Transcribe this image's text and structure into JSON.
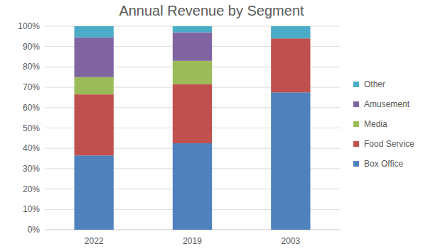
{
  "chart_data": {
    "type": "bar",
    "title": "Annual Revenue by Segment",
    "stacked": true,
    "grid": true,
    "legend": "right",
    "categories": [
      "2022",
      "2019",
      "2003"
    ],
    "series": [
      {
        "name": "Box Office",
        "color": "#4f81bd",
        "values": [
          36.5,
          42.5,
          67.5
        ]
      },
      {
        "name": "Food Service",
        "color": "#c0504d",
        "values": [
          30,
          29,
          26.5
        ]
      },
      {
        "name": "Media",
        "color": "#9bbb59",
        "values": [
          8.5,
          11.5,
          0
        ]
      },
      {
        "name": "Amusement",
        "color": "#8064a2",
        "values": [
          19.5,
          14,
          0
        ]
      },
      {
        "name": "Other",
        "color": "#4bacc6",
        "values": [
          5.5,
          3,
          6
        ]
      }
    ],
    "ylim": [
      0,
      100
    ],
    "yticks": [
      {
        "value": 0,
        "label": "0%"
      },
      {
        "value": 10,
        "label": "10%"
      },
      {
        "value": 20,
        "label": "20%"
      },
      {
        "value": 30,
        "label": "30%"
      },
      {
        "value": 40,
        "label": "40%"
      },
      {
        "value": 50,
        "label": "50%"
      },
      {
        "value": 60,
        "label": "60%"
      },
      {
        "value": 70,
        "label": "70%"
      },
      {
        "value": 80,
        "label": "80%"
      },
      {
        "value": 90,
        "label": "90%"
      },
      {
        "value": 100,
        "label": "100%"
      }
    ]
  }
}
